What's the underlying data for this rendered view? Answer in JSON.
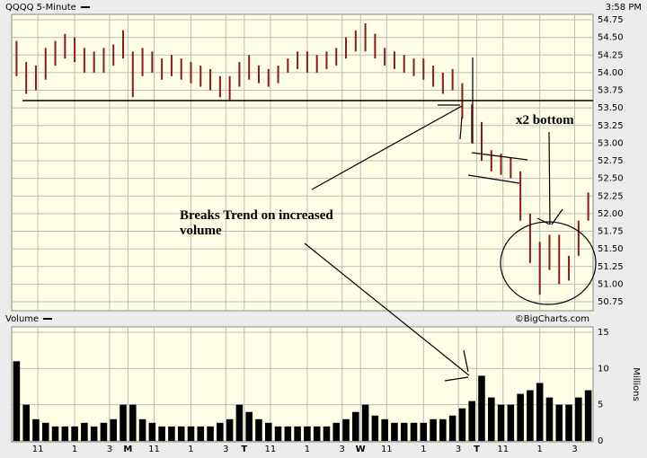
{
  "chart_data": [
    {
      "type": "range",
      "title": "QQQQ 5-Minute",
      "timestamp": "3:58 PM",
      "color": "#8b1a1a",
      "high": [
        54.45,
        54.15,
        54.1,
        54.35,
        54.45,
        54.55,
        54.5,
        54.35,
        54.3,
        54.35,
        54.4,
        54.6,
        54.3,
        54.35,
        54.3,
        54.2,
        54.25,
        54.2,
        54.15,
        54.1,
        54.05,
        53.95,
        53.95,
        54.15,
        54.25,
        54.1,
        54.05,
        54.1,
        54.2,
        54.3,
        54.3,
        54.25,
        54.3,
        54.35,
        54.5,
        54.6,
        54.7,
        54.55,
        54.35,
        54.3,
        54.25,
        54.2,
        54.2,
        54.1,
        54.0,
        54.05,
        53.85,
        53.55,
        53.3,
        52.9,
        52.85,
        52.8,
        52.6,
        52.0,
        51.6,
        51.7,
        51.7,
        51.4,
        51.9,
        52.3
      ],
      "low": [
        53.95,
        53.7,
        53.75,
        53.9,
        54.1,
        54.2,
        54.15,
        54.0,
        54.0,
        54.0,
        54.1,
        54.2,
        53.65,
        53.95,
        54.0,
        53.9,
        53.95,
        53.9,
        53.85,
        53.8,
        53.75,
        53.65,
        53.6,
        53.8,
        53.9,
        53.85,
        53.8,
        53.85,
        54.0,
        54.05,
        54.0,
        54.0,
        54.05,
        54.1,
        54.2,
        54.3,
        54.3,
        54.2,
        54.1,
        54.05,
        54.0,
        53.95,
        53.9,
        53.8,
        53.7,
        53.75,
        53.35,
        53.0,
        52.75,
        52.6,
        52.55,
        52.5,
        51.9,
        51.3,
        50.85,
        51.2,
        51.0,
        51.05,
        51.4,
        51.9
      ],
      "ylim": [
        50.75,
        54.75
      ],
      "yticks": [
        50.75,
        {
          "value": 51,
          "label": "51.00"
        },
        51.25,
        {
          "value": 51.5,
          "label": "51.50"
        },
        51.75,
        {
          "value": 52,
          "label": "52.00"
        },
        52.25,
        {
          "value": 52.5,
          "label": "52.50"
        },
        52.75,
        {
          "value": 53,
          "label": "53.00"
        },
        53.25,
        {
          "value": 53.5,
          "label": "53.50"
        },
        53.75,
        {
          "value": 54,
          "label": "54.00"
        },
        54.25,
        {
          "value": 54.5,
          "label": "54.50"
        },
        54.75
      ],
      "annotations": [
        "Breaks Trend on increased volume",
        "x2 bottom"
      ]
    },
    {
      "type": "bar",
      "title": "Volume",
      "source": "©BigCharts.com",
      "ylabel": "Millions",
      "color": "#000000",
      "values": [
        11,
        5,
        3,
        2.5,
        2,
        2,
        2,
        2.5,
        2,
        2.5,
        3,
        5,
        5,
        3,
        2.5,
        2,
        2,
        2,
        2,
        2,
        2,
        2.5,
        3,
        5,
        4,
        3,
        2.5,
        2,
        2,
        2,
        2,
        2,
        2,
        2.5,
        3,
        4,
        5,
        3.5,
        3,
        2.5,
        2.5,
        2.5,
        2.5,
        3,
        3,
        3.5,
        4.5,
        5.5,
        9,
        6,
        5,
        5,
        6.5,
        7,
        8,
        6,
        5,
        5,
        6,
        7
      ],
      "ylim": [
        0,
        15
      ],
      "yticks": [
        0,
        5,
        10,
        15
      ],
      "xlim": [
        -0.5,
        59.5
      ],
      "xticks": [
        {
          "value": 2.2,
          "label": "11"
        },
        {
          "value": 6,
          "label": "1"
        },
        {
          "value": 9.6,
          "label": "3"
        },
        {
          "value": 11.5,
          "label": "M"
        },
        {
          "value": 14.2,
          "label": "11"
        },
        {
          "value": 18,
          "label": "1"
        },
        {
          "value": 21.6,
          "label": "3"
        },
        {
          "value": 23.5,
          "label": "T"
        },
        {
          "value": 26.2,
          "label": "11"
        },
        {
          "value": 30,
          "label": "1"
        },
        {
          "value": 33.6,
          "label": "3"
        },
        {
          "value": 35.5,
          "label": "W"
        },
        {
          "value": 38.2,
          "label": "11"
        },
        {
          "value": 42,
          "label": "1"
        },
        {
          "value": 45.6,
          "label": "3"
        },
        {
          "value": 47.5,
          "label": "T"
        },
        {
          "value": 50.2,
          "label": "11"
        },
        {
          "value": 54,
          "label": "1"
        },
        {
          "value": 57.6,
          "label": "3"
        }
      ]
    }
  ]
}
